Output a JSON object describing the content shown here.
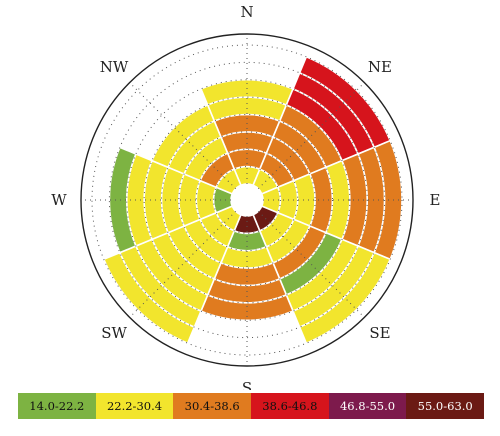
{
  "chart_data": {
    "type": "polar-heatmap",
    "title": "",
    "directions": [
      "N",
      "NE",
      "E",
      "SE",
      "S",
      "SW",
      "W",
      "NW"
    ],
    "ring_colors_key": "bin index per 45° sector (N, NE, E, SE, S, SW, W, NW), innermost ring first; null = no data",
    "rings": [
      [
        1,
        1,
        1,
        5,
        5,
        1,
        0,
        1
      ],
      [
        2,
        2,
        1,
        1,
        0,
        1,
        1,
        2
      ],
      [
        2,
        2,
        1,
        1,
        1,
        1,
        1,
        1
      ],
      [
        2,
        2,
        2,
        2,
        2,
        1,
        1,
        1
      ],
      [
        1,
        2,
        1,
        0,
        2,
        1,
        1,
        1
      ],
      [
        1,
        3,
        2,
        1,
        2,
        1,
        1,
        null
      ],
      [
        null,
        3,
        2,
        1,
        null,
        1,
        0,
        null
      ],
      [
        null,
        3,
        2,
        1,
        null,
        1,
        null,
        null
      ]
    ],
    "legend": [
      {
        "label": "14.0-22.2",
        "color": "#7db342"
      },
      {
        "label": "22.2-30.4",
        "color": "#f2e52d"
      },
      {
        "label": "30.4-38.6",
        "color": "#e07b1f"
      },
      {
        "label": "38.6-46.8",
        "color": "#d6141c"
      },
      {
        "label": "46.8-55.0",
        "color": "#7d1a4c"
      },
      {
        "label": "55.0-63.0",
        "color": "#6b1a14"
      }
    ],
    "legend_placement": "bottom",
    "grid": true
  }
}
